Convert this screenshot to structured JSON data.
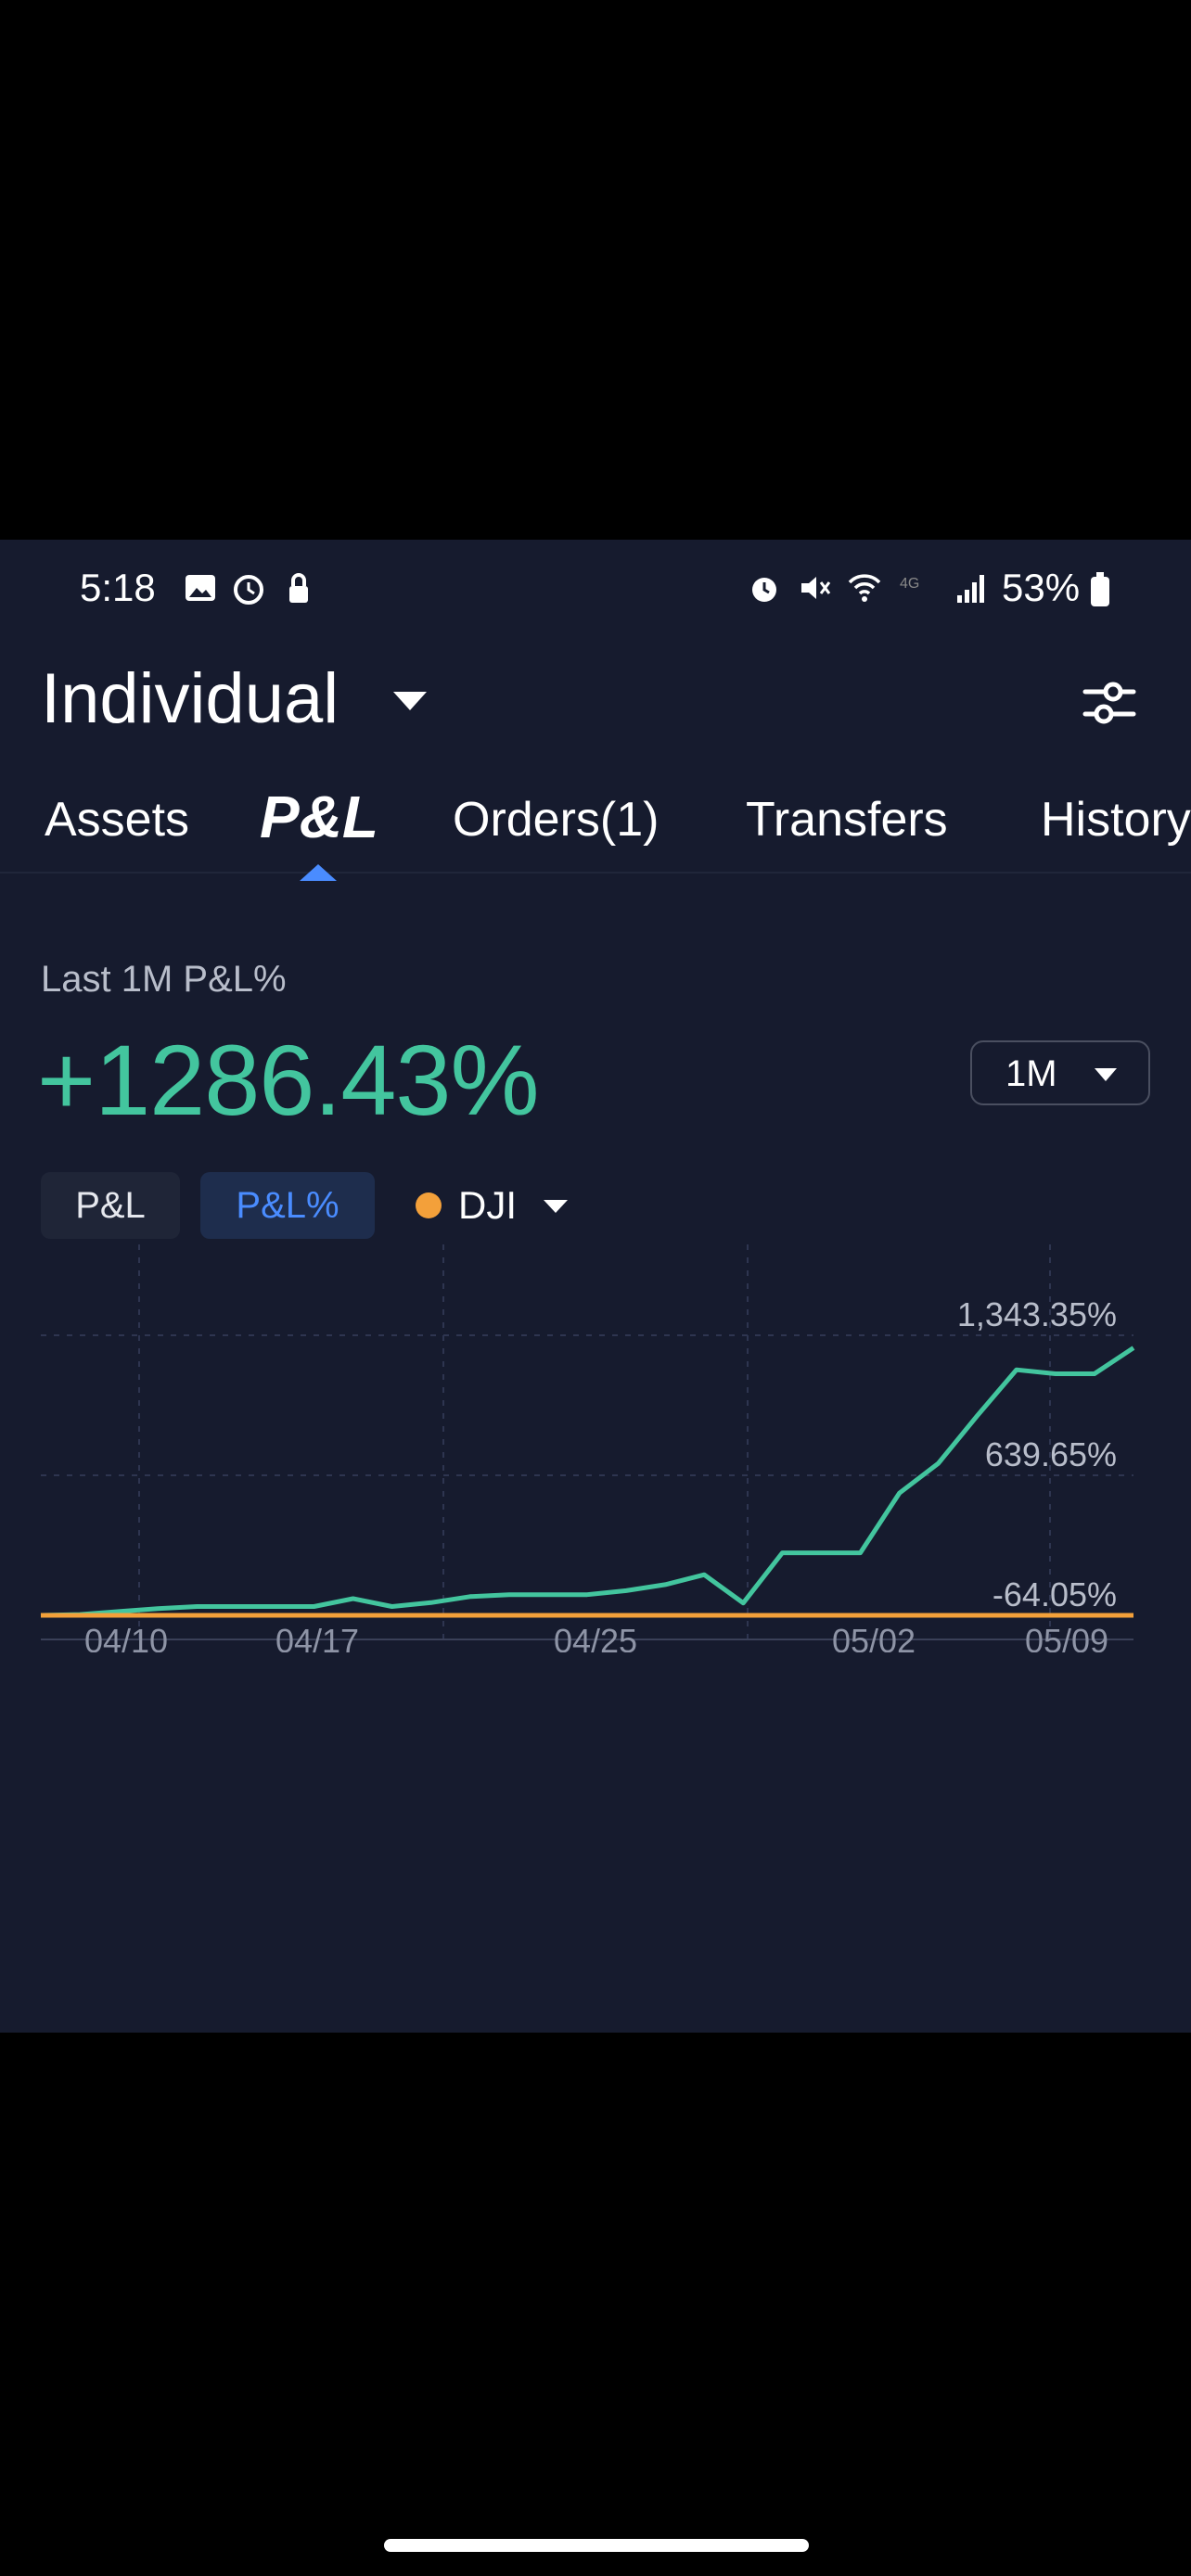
{
  "status_bar": {
    "time": "5:18",
    "battery": "53%",
    "left_icons": [
      "gallery-icon",
      "alarm-icon",
      "lock-icon"
    ],
    "right_icons": [
      "alarm-icon",
      "mute-icon",
      "wifi-icon",
      "lte-icon",
      "signal-icon",
      "battery-icon"
    ]
  },
  "header": {
    "account": "Individual"
  },
  "tabs": [
    {
      "label": "Assets",
      "active": false
    },
    {
      "label": "P&L",
      "active": true
    },
    {
      "label": "Orders(1)",
      "active": false
    },
    {
      "label": "Transfers",
      "active": false
    },
    {
      "label": "History",
      "active": false
    }
  ],
  "summary": {
    "label": "Last 1M P&L%",
    "value": "+1286.43%",
    "range": "1M"
  },
  "chips": {
    "pl": "P&L",
    "pl_percent": "P&L%",
    "benchmark": "DJI"
  },
  "colors": {
    "background": "#161b2e",
    "accent": "#4a8cff",
    "gain": "#43c59e",
    "benchmark": "#f3a03a"
  },
  "chart_data": {
    "type": "line",
    "y_labels": [
      "1,343.35%",
      "639.65%",
      "-64.05%"
    ],
    "x_labels": [
      "04/10",
      "04/17",
      "04/25",
      "05/02",
      "05/09"
    ],
    "ylim": [
      -64.05,
      1343.35
    ],
    "grid": true,
    "series": [
      {
        "name": "P&L%",
        "color": "#43c59e",
        "values": [
          -64,
          -60,
          -45,
          -30,
          -20,
          -20,
          -20,
          -20,
          20,
          -20,
          0,
          30,
          40,
          40,
          40,
          60,
          90,
          140,
          -2,
          250,
          250,
          250,
          550,
          700,
          940,
          1170,
          1150,
          1150,
          1280
        ]
      },
      {
        "name": "DJI",
        "color": "#f3a03a",
        "values": [
          -64,
          -64,
          -64,
          -64,
          -64,
          -64,
          -64,
          -64,
          -64,
          -64,
          -64,
          -64,
          -64,
          -64,
          -64,
          -64,
          -64,
          -64,
          -64,
          -64,
          -64,
          -64,
          -64,
          -64,
          -64,
          -64,
          -64,
          -64,
          -64
        ]
      }
    ]
  }
}
